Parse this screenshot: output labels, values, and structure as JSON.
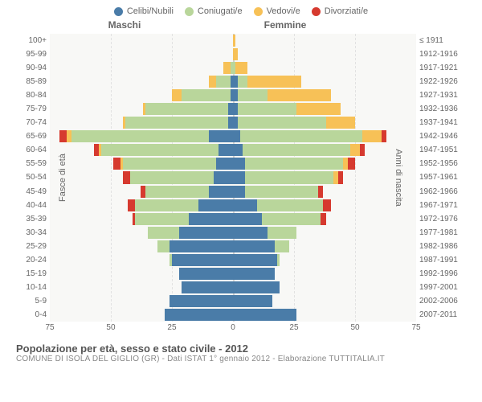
{
  "legend": [
    {
      "label": "Celibi/Nubili",
      "color": "#4a7ca8"
    },
    {
      "label": "Coniugati/e",
      "color": "#b9d69b"
    },
    {
      "label": "Vedovi/e",
      "color": "#f7c157"
    },
    {
      "label": "Divorziati/e",
      "color": "#d63a2f"
    }
  ],
  "gender_labels": {
    "male": "Maschi",
    "female": "Femmine"
  },
  "axis_titles": {
    "left": "Fasce di età",
    "right": "Anni di nascita"
  },
  "x_axis": {
    "max": 75,
    "ticks": [
      75,
      50,
      25,
      0,
      25,
      50,
      75
    ]
  },
  "colors": {
    "plot_bg": "#f8f8f6",
    "grid": "#e2e2e2",
    "center": "#d0d0d0",
    "text": "#666666"
  },
  "footer": {
    "title": "Popolazione per età, sesso e stato civile - 2012",
    "subtitle": "COMUNE DI ISOLA DEL GIGLIO (GR) - Dati ISTAT 1° gennaio 2012 - Elaborazione TUTTITALIA.IT"
  },
  "rows": [
    {
      "age": "100+",
      "birth": "≤ 1911",
      "m": [
        0,
        0,
        0,
        0
      ],
      "f": [
        0,
        0,
        1,
        0
      ]
    },
    {
      "age": "95-99",
      "birth": "1912-1916",
      "m": [
        0,
        0,
        0,
        0
      ],
      "f": [
        0,
        0,
        2,
        0
      ]
    },
    {
      "age": "90-94",
      "birth": "1917-1921",
      "m": [
        0,
        1,
        3,
        0
      ],
      "f": [
        0,
        1,
        5,
        0
      ]
    },
    {
      "age": "85-89",
      "birth": "1922-1926",
      "m": [
        1,
        6,
        3,
        0
      ],
      "f": [
        2,
        4,
        22,
        0
      ]
    },
    {
      "age": "80-84",
      "birth": "1927-1931",
      "m": [
        1,
        20,
        4,
        0
      ],
      "f": [
        2,
        12,
        26,
        0
      ]
    },
    {
      "age": "75-79",
      "birth": "1932-1936",
      "m": [
        2,
        34,
        1,
        0
      ],
      "f": [
        2,
        24,
        18,
        0
      ]
    },
    {
      "age": "70-74",
      "birth": "1937-1941",
      "m": [
        2,
        42,
        1,
        0
      ],
      "f": [
        2,
        36,
        12,
        0
      ]
    },
    {
      "age": "65-69",
      "birth": "1942-1946",
      "m": [
        10,
        56,
        2,
        3
      ],
      "f": [
        3,
        50,
        8,
        2
      ]
    },
    {
      "age": "60-64",
      "birth": "1947-1951",
      "m": [
        6,
        48,
        1,
        2
      ],
      "f": [
        4,
        44,
        4,
        2
      ]
    },
    {
      "age": "55-59",
      "birth": "1952-1956",
      "m": [
        7,
        38,
        1,
        3
      ],
      "f": [
        5,
        40,
        2,
        3
      ]
    },
    {
      "age": "50-54",
      "birth": "1957-1961",
      "m": [
        8,
        34,
        0,
        3
      ],
      "f": [
        5,
        36,
        2,
        2
      ]
    },
    {
      "age": "45-49",
      "birth": "1962-1966",
      "m": [
        10,
        26,
        0,
        2
      ],
      "f": [
        5,
        30,
        0,
        2
      ]
    },
    {
      "age": "40-44",
      "birth": "1967-1971",
      "m": [
        14,
        26,
        0,
        3
      ],
      "f": [
        10,
        27,
        0,
        3
      ]
    },
    {
      "age": "35-39",
      "birth": "1972-1976",
      "m": [
        18,
        22,
        0,
        1
      ],
      "f": [
        12,
        24,
        0,
        2
      ]
    },
    {
      "age": "30-34",
      "birth": "1977-1981",
      "m": [
        22,
        13,
        0,
        0
      ],
      "f": [
        14,
        12,
        0,
        0
      ]
    },
    {
      "age": "25-29",
      "birth": "1982-1986",
      "m": [
        26,
        5,
        0,
        0
      ],
      "f": [
        17,
        6,
        0,
        0
      ]
    },
    {
      "age": "20-24",
      "birth": "1987-1991",
      "m": [
        25,
        1,
        0,
        0
      ],
      "f": [
        18,
        1,
        0,
        0
      ]
    },
    {
      "age": "15-19",
      "birth": "1992-1996",
      "m": [
        22,
        0,
        0,
        0
      ],
      "f": [
        17,
        0,
        0,
        0
      ]
    },
    {
      "age": "10-14",
      "birth": "1997-2001",
      "m": [
        21,
        0,
        0,
        0
      ],
      "f": [
        19,
        0,
        0,
        0
      ]
    },
    {
      "age": "5-9",
      "birth": "2002-2006",
      "m": [
        26,
        0,
        0,
        0
      ],
      "f": [
        16,
        0,
        0,
        0
      ]
    },
    {
      "age": "0-4",
      "birth": "2007-2011",
      "m": [
        28,
        0,
        0,
        0
      ],
      "f": [
        26,
        0,
        0,
        0
      ]
    }
  ]
}
